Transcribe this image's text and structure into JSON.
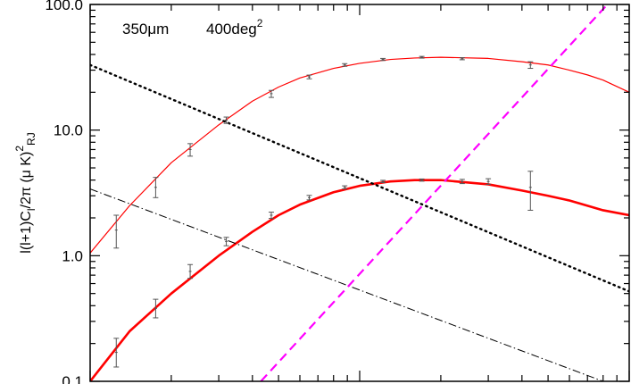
{
  "chart_data": {
    "type": "line",
    "title": "",
    "xlabel": "",
    "ylabel": "l(l+1)C_l/2π (μ K)²_RJ",
    "ylabel_parts": {
      "main": "l(l+1)C",
      "sub1": "l",
      "mid": "/2π (μ K)",
      "sup": "2",
      "sub2": "RJ"
    },
    "annotations": {
      "wavelength": "350μm",
      "area": "400deg",
      "area_sup": "2"
    },
    "xscale": "log",
    "yscale": "log",
    "xlim": [
      10,
      1000
    ],
    "ylim": [
      0.1,
      100
    ],
    "ytick_labels": [
      "0.1",
      "1.0",
      "10.0",
      "100.0"
    ],
    "yticks": [
      0.1,
      1,
      10,
      100
    ],
    "grid": false,
    "series": [
      {
        "kind": "model-upper",
        "color": "#ff0000",
        "style": "solid-thin",
        "x": [
          10,
          14,
          20,
          30,
          40,
          50,
          60,
          80,
          100,
          130,
          160,
          200,
          300,
          400,
          500,
          600,
          700,
          800,
          1000
        ],
        "y": [
          1.05,
          2.5,
          5.5,
          11,
          17,
          22,
          26,
          31,
          34,
          36.5,
          37.5,
          38,
          37.2,
          35,
          33,
          30,
          27.5,
          25,
          20
        ]
      },
      {
        "kind": "model-lower",
        "color": "#ff0000",
        "style": "solid-thick",
        "x": [
          10,
          14,
          20,
          30,
          40,
          50,
          60,
          80,
          100,
          130,
          160,
          200,
          300,
          400,
          500,
          600,
          700,
          800,
          1000
        ],
        "y": [
          0.1,
          0.25,
          0.5,
          1.0,
          1.55,
          2.1,
          2.55,
          3.2,
          3.6,
          3.9,
          4.0,
          4.0,
          3.7,
          3.3,
          3.0,
          2.75,
          2.5,
          2.3,
          2.1
        ]
      },
      {
        "kind": "dotted-line",
        "color": "#000000",
        "style": "dotted",
        "x": [
          10,
          1000
        ],
        "y": [
          33,
          0.52
        ]
      },
      {
        "kind": "dash-dot-line",
        "color": "#000000",
        "style": "dashdot",
        "x": [
          10,
          800
        ],
        "y": [
          3.4,
          0.1
        ]
      },
      {
        "kind": "magenta-dashed-line",
        "color": "#ff00ff",
        "style": "dashed",
        "x": [
          43,
          830
        ],
        "y": [
          0.1,
          100
        ]
      }
    ],
    "errorbars": [
      {
        "kind": "upper-points",
        "color": "#555555",
        "x": [
          12.5,
          17.5,
          23.5,
          32,
          47,
          65,
          88,
          122,
          170,
          240,
          430
        ],
        "y": [
          1.6,
          3.5,
          7.0,
          12.0,
          19.5,
          26.5,
          33.0,
          36.5,
          38.0,
          37.0,
          33.0
        ],
        "lo": [
          1.15,
          2.9,
          6.2,
          11.3,
          18.2,
          25.6,
          32.2,
          35.8,
          37.4,
          36.3,
          31.0
        ],
        "hi": [
          2.1,
          4.2,
          7.8,
          12.7,
          20.7,
          27.4,
          33.8,
          37.2,
          38.6,
          37.7,
          35.0
        ]
      },
      {
        "kind": "lower-points",
        "color": "#555555",
        "x": [
          12.5,
          17.5,
          23.5,
          32,
          47,
          65,
          88,
          122,
          170,
          240,
          300,
          430
        ],
        "y": [
          0.17,
          0.38,
          0.75,
          1.3,
          2.1,
          2.9,
          3.5,
          3.9,
          4.0,
          3.9,
          3.9,
          3.5
        ],
        "lo": [
          0.13,
          0.32,
          0.66,
          1.2,
          1.98,
          2.78,
          3.4,
          3.82,
          3.92,
          3.75,
          3.7,
          2.3
        ],
        "hi": [
          0.22,
          0.45,
          0.85,
          1.4,
          2.22,
          3.02,
          3.6,
          3.98,
          4.08,
          4.05,
          4.1,
          4.7
        ]
      }
    ]
  }
}
